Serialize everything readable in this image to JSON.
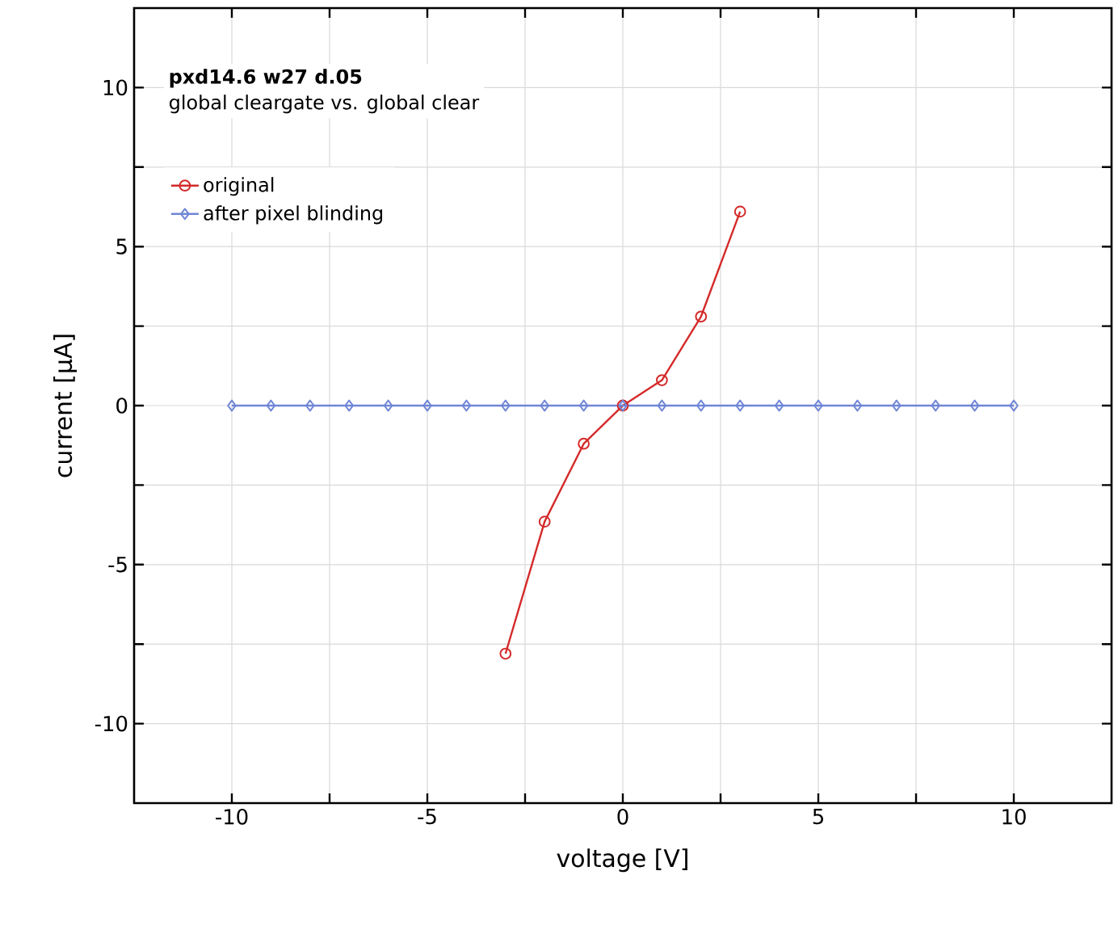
{
  "chart_data": {
    "type": "line",
    "title": "pxd14.6 w27 d.05",
    "subtitle": "global cleargate vs. global clear",
    "xlabel": "voltage [V]",
    "ylabel": "current [µA]",
    "xlim": [
      -12.5,
      12.5
    ],
    "ylim": [
      -12.5,
      12.5
    ],
    "xticks": [
      -10,
      {
        "value": -7.5,
        "label": null
      },
      -5,
      {
        "value": -2.5,
        "label": null
      },
      0,
      {
        "value": 2.5,
        "label": null
      },
      5,
      {
        "value": 7.5,
        "label": null
      },
      10
    ],
    "yticks": [
      -10,
      {
        "value": -7.5,
        "label": null
      },
      -5,
      {
        "value": -2.5,
        "label": null
      },
      0,
      {
        "value": 2.5,
        "label": null
      },
      5,
      {
        "value": 7.5,
        "label": null
      },
      10
    ],
    "grid": true,
    "legend": "top left",
    "line_style": "solid",
    "series": [
      {
        "name": "original",
        "color": "#d42a2a",
        "marker": "circle",
        "x": [
          -3,
          -2,
          -1,
          0,
          1,
          2,
          3
        ],
        "values": [
          -7.8,
          -3.65,
          -1.2,
          0,
          0.8,
          2.8,
          6.1
        ]
      },
      {
        "name": "after pixel blinding",
        "color": "#6f86d6",
        "marker": "diamond",
        "x": [
          -10,
          -9,
          -8,
          -7,
          -6,
          -5,
          -4,
          -3,
          -2,
          -1,
          0,
          1,
          2,
          3,
          4,
          5,
          6,
          7,
          8,
          9,
          10
        ],
        "values": [
          0,
          0,
          0,
          0,
          0,
          0,
          0,
          0,
          0,
          0,
          0,
          0,
          0,
          0,
          0,
          0,
          0,
          0,
          0,
          0,
          0
        ]
      }
    ]
  }
}
